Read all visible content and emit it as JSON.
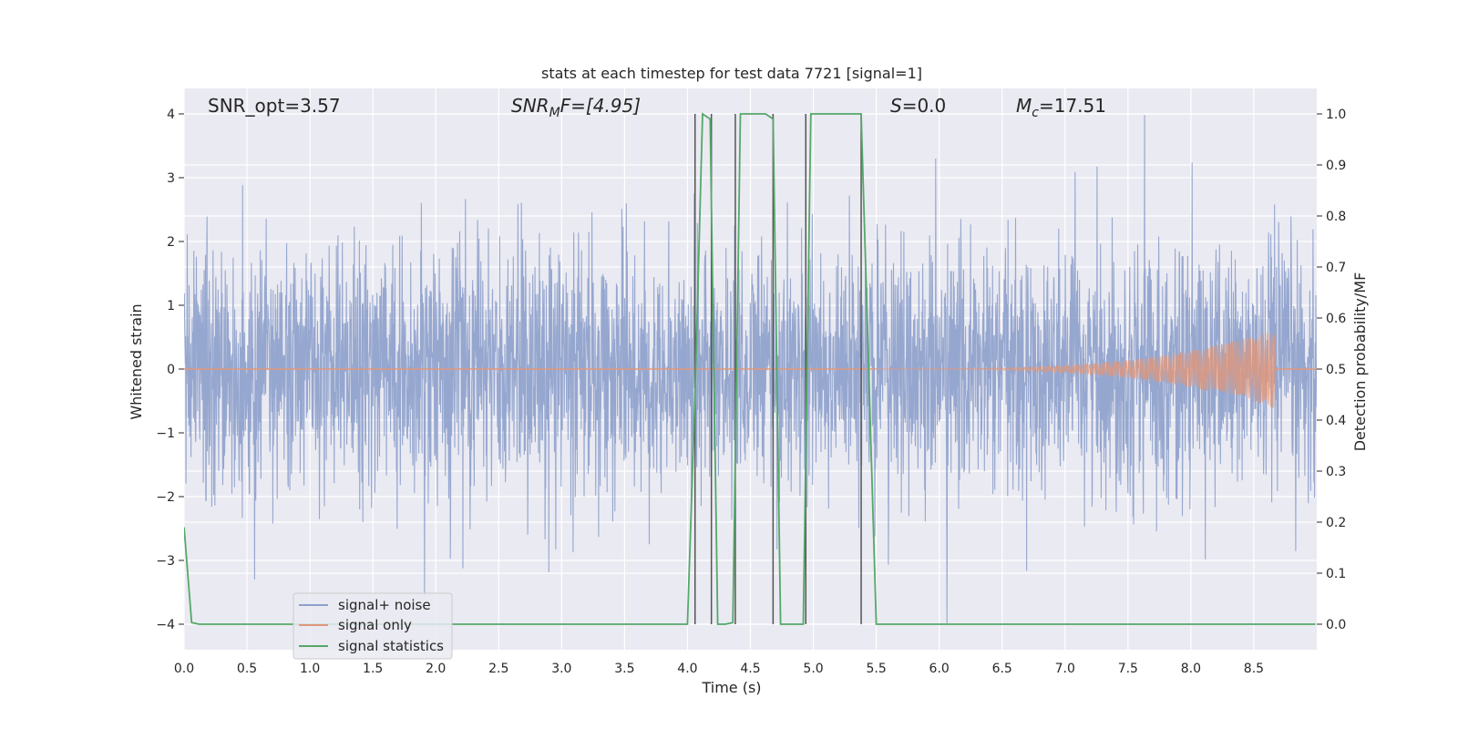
{
  "chart_data": {
    "type": "line",
    "title": "stats at each timestep for test data 7721 [signal=1]",
    "xlabel": "Time (s)",
    "ylabel_left": "Whitened strain",
    "ylabel_right": "Detection probability/MF",
    "xlim": [
      0,
      9
    ],
    "ylim_left": [
      -4.4,
      4.4
    ],
    "ylim_right": [
      -0.05,
      1.05
    ],
    "x_ticks": [
      "0.0",
      "0.5",
      "1.0",
      "1.5",
      "2.0",
      "2.5",
      "3.0",
      "3.5",
      "4.0",
      "4.5",
      "5.0",
      "5.5",
      "6.0",
      "6.5",
      "7.0",
      "7.5",
      "8.0",
      "8.5"
    ],
    "y_ticks_left": [
      "4",
      "3",
      "2",
      "1",
      "0",
      "−1",
      "−2",
      "−3",
      "−4"
    ],
    "y_ticks_right": [
      "1.0",
      "0.9",
      "0.8",
      "0.7",
      "0.6",
      "0.5",
      "0.4",
      "0.3",
      "0.2",
      "0.1",
      "0.0"
    ],
    "grid": true,
    "annotations": {
      "snr_opt": "SNR_opt=3.57",
      "snr_mf_main": "SNR",
      "snr_mf_sub": "M",
      "snr_mf_rest": "F=[4.95]",
      "s_main": "S",
      "s_rest": "=0.0",
      "mc_main": "M",
      "mc_sub": "c",
      "mc_rest": "=17.51"
    },
    "legend": {
      "position": "lower-left",
      "entries": [
        "signal+ noise",
        "signal only",
        "signal statistics"
      ]
    },
    "colors": {
      "noise": "#8da0cb",
      "signal": "#e1977a",
      "stats": "#55a868",
      "vlines": "#555555",
      "background": "#eaeaf2",
      "grid": "#ffffff"
    },
    "series": [
      {
        "name": "signal+ noise",
        "axis": "left",
        "description_values": {
          "x_range": [
            0,
            9
          ],
          "typical_range": [
            -2.4,
            2.4
          ],
          "max": 3.98,
          "min": -4.0
        }
      },
      {
        "name": "signal only",
        "axis": "left",
        "description_values": {
          "x_start": 5.5,
          "x_end": 8.67,
          "peak_amplitude": 0.62
        }
      },
      {
        "name": "signal statistics",
        "axis": "right",
        "x": [
          0.0,
          0.06,
          0.12,
          4.0,
          4.06,
          4.12,
          4.18,
          4.24,
          4.3,
          4.36,
          4.42,
          4.48,
          4.62,
          4.68,
          4.74,
          4.82,
          4.92,
          4.98,
          5.38,
          5.5,
          8.99
        ],
        "y": [
          0.19,
          0.003,
          0.0,
          0.0,
          0.45,
          1.0,
          0.99,
          0.0,
          0.0,
          0.003,
          1.0,
          1.0,
          1.0,
          0.99,
          0.0,
          0.0,
          0.0,
          1.0,
          1.0,
          0.0,
          0.0
        ]
      }
    ],
    "vertical_markers_x": [
      4.06,
      4.19,
      4.38,
      4.68,
      4.94,
      5.38
    ]
  }
}
